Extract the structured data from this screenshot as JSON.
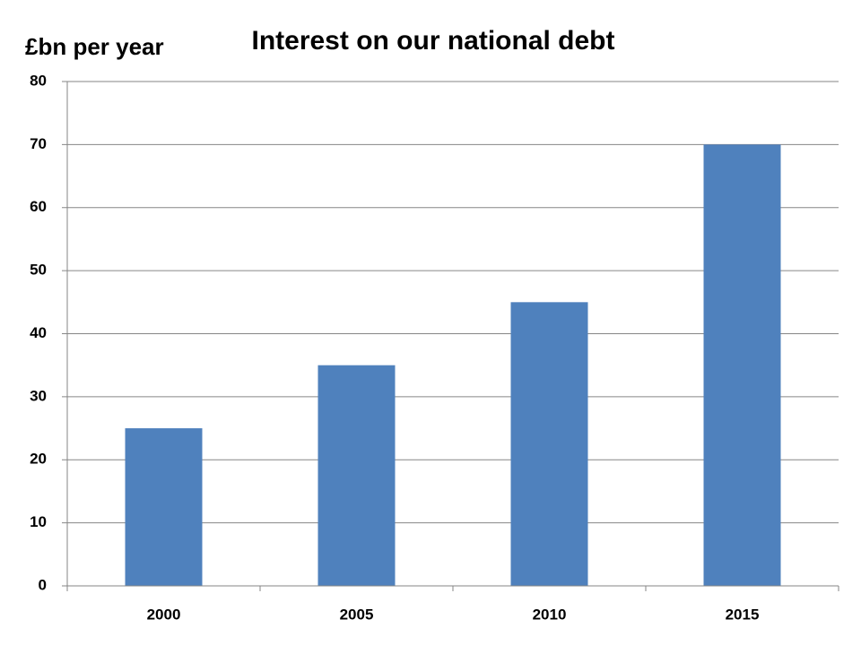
{
  "chart_data": {
    "type": "bar",
    "title": "Interest on our national debt",
    "y_label": "£bn per year",
    "categories": [
      "2000",
      "2005",
      "2010",
      "2015"
    ],
    "values": [
      25,
      35,
      45,
      70
    ],
    "color": "#4f81bd",
    "ylim": [
      0,
      80
    ],
    "yticks": [
      0,
      10,
      20,
      30,
      40,
      50,
      60,
      70,
      80
    ],
    "grid": true
  }
}
